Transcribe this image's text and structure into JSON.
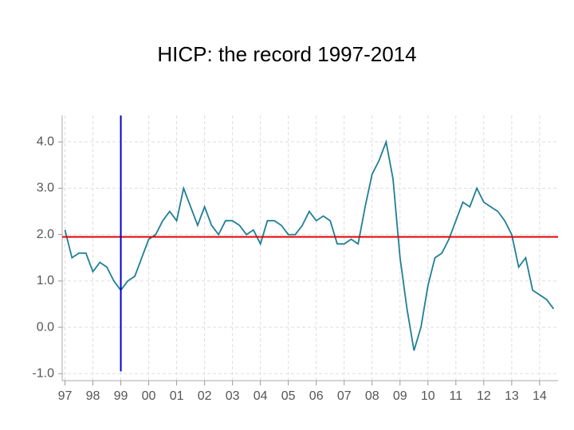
{
  "chart_data": {
    "type": "line",
    "title": "HICP: the record 1997-2014",
    "x": [
      1997.0,
      1997.25,
      1997.5,
      1997.75,
      1998.0,
      1998.25,
      1998.5,
      1998.75,
      1999.0,
      1999.25,
      1999.5,
      1999.75,
      2000.0,
      2000.25,
      2000.5,
      2000.75,
      2001.0,
      2001.25,
      2001.5,
      2001.75,
      2002.0,
      2002.25,
      2002.5,
      2002.75,
      2003.0,
      2003.25,
      2003.5,
      2003.75,
      2004.0,
      2004.25,
      2004.5,
      2004.75,
      2005.0,
      2005.25,
      2005.5,
      2005.75,
      2006.0,
      2006.25,
      2006.5,
      2006.75,
      2007.0,
      2007.25,
      2007.5,
      2007.75,
      2008.0,
      2008.25,
      2008.5,
      2008.75,
      2009.0,
      2009.25,
      2009.5,
      2009.75,
      2010.0,
      2010.25,
      2010.5,
      2010.75,
      2011.0,
      2011.25,
      2011.5,
      2011.75,
      2012.0,
      2012.25,
      2012.5,
      2012.75,
      2013.0,
      2013.25,
      2013.5,
      2013.75,
      2014.0,
      2014.25,
      2014.5
    ],
    "series": [
      {
        "color": "#1f7f95",
        "values": [
          2.1,
          1.5,
          1.6,
          1.6,
          1.2,
          1.4,
          1.3,
          1.0,
          0.8,
          1.0,
          1.1,
          1.5,
          1.9,
          2.0,
          2.3,
          2.5,
          2.3,
          3.0,
          2.6,
          2.2,
          2.6,
          2.2,
          2.0,
          2.3,
          2.3,
          2.2,
          2.0,
          2.1,
          1.8,
          2.3,
          2.3,
          2.2,
          2.0,
          2.0,
          2.2,
          2.5,
          2.3,
          2.4,
          2.3,
          1.8,
          1.8,
          1.9,
          1.8,
          2.6,
          3.3,
          3.6,
          4.0,
          3.2,
          1.5,
          0.4,
          -0.5,
          0.0,
          0.9,
          1.5,
          1.6,
          1.9,
          2.3,
          2.7,
          2.6,
          3.0,
          2.7,
          2.6,
          2.5,
          2.3,
          2.0,
          1.3,
          1.5,
          0.8,
          0.7,
          0.6,
          0.4
        ]
      }
    ],
    "xlim": [
      1996.9,
      2014.66
    ],
    "xticks": [
      {
        "value": 1997,
        "label": "97"
      },
      {
        "value": 1998,
        "label": "98"
      },
      {
        "value": 1999,
        "label": "99"
      },
      {
        "value": 2000,
        "label": "00"
      },
      {
        "value": 2001,
        "label": "01"
      },
      {
        "value": 2002,
        "label": "02"
      },
      {
        "value": 2003,
        "label": "03"
      },
      {
        "value": 2004,
        "label": "04"
      },
      {
        "value": 2005,
        "label": "05"
      },
      {
        "value": 2006,
        "label": "06"
      },
      {
        "value": 2007,
        "label": "07"
      },
      {
        "value": 2008,
        "label": "08"
      },
      {
        "value": 2009,
        "label": "09"
      },
      {
        "value": 2010,
        "label": "10"
      },
      {
        "value": 2011,
        "label": "11"
      },
      {
        "value": 2012,
        "label": "12"
      },
      {
        "value": 2013,
        "label": "13"
      },
      {
        "value": 2014,
        "label": "14"
      }
    ],
    "ylim": [
      -1.15,
      4.57
    ],
    "yticks": [
      {
        "value": -1,
        "label": "-1.0"
      },
      {
        "value": 0,
        "label": "0.0"
      },
      {
        "value": 1,
        "label": "1.0"
      },
      {
        "value": 2,
        "label": "2.0"
      },
      {
        "value": 3,
        "label": "3.0"
      },
      {
        "value": 4,
        "label": "4.0"
      }
    ],
    "grid": true,
    "hline": {
      "value": 1.95,
      "color": "#e00000"
    },
    "vline": {
      "x": 1999,
      "color": "#0000cc"
    }
  }
}
